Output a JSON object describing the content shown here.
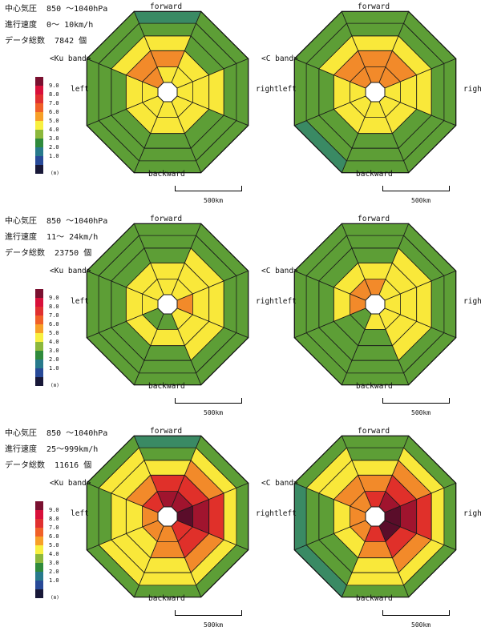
{
  "stats_labels": {
    "pressure": "中心気圧",
    "speed": "進行速度",
    "count": "データ総数",
    "count_unit": "個"
  },
  "direction_labels": {
    "forward": "forward",
    "backward": "backward",
    "left": "left",
    "right": "right"
  },
  "scale_label": "500km",
  "legend": {
    "values": [
      "9.0",
      "8.0",
      "7.0",
      "6.0",
      "5.0",
      "4.0",
      "3.0",
      "2.0",
      "1.0"
    ],
    "unit": "(m)",
    "colors": [
      "#d8103a",
      "#e03030",
      "#f06028",
      "#f7a028",
      "#f8f040",
      "#8cb83c",
      "#2f8a3c",
      "#287a8c",
      "#284a98"
    ],
    "top_color": "#7a1030",
    "bottom_color": "#181838"
  },
  "chart_data": [
    {
      "type": "heatmap",
      "pressure": "850 ～1040hPa",
      "speed": "0～ 10km/h",
      "count": "7842",
      "left_band": "<Ku band>",
      "right_band": "<C band>",
      "ku_band": [
        [
          5.5,
          5.0,
          5.5,
          5.0,
          5.0,
          5.0,
          5.0,
          6.5
        ],
        [
          6.0,
          5.5,
          5.5,
          5.0,
          5.0,
          5.0,
          5.0,
          6.5
        ],
        [
          5.0,
          4.5,
          5.0,
          4.5,
          4.5,
          4.5,
          4.5,
          5.0
        ],
        [
          4.5,
          4.5,
          4.5,
          4.5,
          4.5,
          4.5,
          4.5,
          4.5
        ],
        [
          3.5,
          4.5,
          4.5,
          4.5,
          4.5,
          4.5,
          4.5,
          4.5
        ]
      ],
      "c_band": [
        [
          6.0,
          6.5,
          5.5,
          5.0,
          5.0,
          5.0,
          5.0,
          6.0
        ],
        [
          6.0,
          6.0,
          5.5,
          5.0,
          5.0,
          5.0,
          5.0,
          6.0
        ],
        [
          5.0,
          5.0,
          5.0,
          4.5,
          4.5,
          4.5,
          4.5,
          5.0
        ],
        [
          4.5,
          4.5,
          4.5,
          4.5,
          4.5,
          4.5,
          4.5,
          4.5
        ],
        [
          4.5,
          4.5,
          4.5,
          4.5,
          4.5,
          3.5,
          4.5,
          4.5
        ]
      ]
    },
    {
      "type": "heatmap",
      "pressure": "850 ～1040hPa",
      "speed": "11～ 24km/h",
      "count": "23750",
      "left_band": "<Ku band>",
      "right_band": "<C band>",
      "ku_band": [
        [
          5.5,
          5.5,
          6.5,
          5.5,
          4.5,
          4.5,
          5.0,
          5.0
        ],
        [
          5.5,
          5.5,
          5.5,
          5.0,
          5.0,
          5.0,
          5.0,
          5.0
        ],
        [
          4.5,
          5.5,
          5.5,
          5.0,
          4.5,
          4.5,
          4.5,
          4.5
        ],
        [
          4.5,
          4.5,
          4.5,
          4.5,
          4.5,
          4.5,
          4.5,
          4.5
        ],
        [
          4.5,
          4.5,
          4.5,
          4.5,
          4.5,
          4.5,
          4.5,
          4.5
        ]
      ],
      "c_band": [
        [
          6.5,
          5.5,
          5.5,
          5.5,
          5.5,
          4.5,
          6.5,
          6.5
        ],
        [
          5.0,
          5.5,
          5.5,
          5.5,
          4.5,
          4.5,
          5.0,
          5.0
        ],
        [
          4.5,
          5.0,
          5.5,
          5.0,
          4.5,
          4.5,
          4.5,
          4.5
        ],
        [
          4.5,
          4.5,
          4.5,
          4.5,
          4.5,
          4.5,
          4.5,
          4.5
        ],
        [
          4.5,
          4.5,
          4.5,
          4.5,
          4.5,
          4.5,
          4.5,
          4.5
        ]
      ]
    },
    {
      "type": "heatmap",
      "pressure": "850 ～1040hPa",
      "speed": "25～999km/h",
      "count": "11616",
      "left_band": "<Ku band>",
      "right_band": "<C band>",
      "ku_band": [
        [
          8.0,
          8.0,
          9.5,
          7.0,
          6.5,
          6.0,
          6.0,
          7.0
        ],
        [
          7.0,
          7.5,
          8.0,
          7.0,
          6.0,
          5.5,
          5.5,
          6.0
        ],
        [
          5.5,
          6.5,
          7.5,
          6.0,
          5.5,
          5.5,
          5.0,
          5.5
        ],
        [
          4.5,
          5.5,
          5.5,
          5.0,
          5.5,
          5.0,
          4.5,
          5.0
        ],
        [
          3.5,
          4.5,
          4.5,
          4.5,
          4.5,
          4.5,
          4.5,
          4.5
        ]
      ],
      "c_band": [
        [
          7.5,
          8.5,
          9.5,
          9.0,
          7.0,
          6.5,
          6.0,
          6.5
        ],
        [
          6.5,
          7.5,
          8.0,
          7.5,
          6.5,
          5.5,
          5.5,
          6.0
        ],
        [
          5.5,
          6.5,
          7.5,
          6.5,
          5.5,
          4.5,
          4.5,
          5.0
        ],
        [
          4.5,
          5.5,
          5.5,
          5.5,
          5.0,
          4.5,
          4.5,
          5.0
        ],
        [
          4.5,
          4.5,
          4.5,
          4.5,
          4.5,
          3.5,
          3.5,
          4.5
        ]
      ]
    }
  ]
}
